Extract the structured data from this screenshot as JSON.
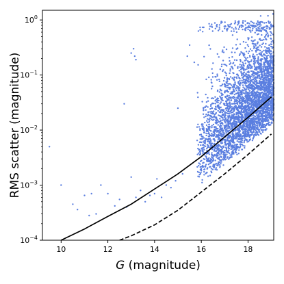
{
  "chart_data": {
    "type": "scatter",
    "title": "",
    "xlabel_italic": "G",
    "xlabel_rest": " (magnitude)",
    "ylabel": "RMS scatter (magnitude)",
    "xlim": [
      9.2,
      19.1
    ],
    "ylim": [
      0.0001,
      1.5
    ],
    "yscale": "log",
    "grid": false,
    "legend": "none",
    "x_ticks": [
      {
        "value": 10,
        "label": "10"
      },
      {
        "value": 12,
        "label": "12"
      },
      {
        "value": 14,
        "label": "14"
      },
      {
        "value": 16,
        "label": "16"
      },
      {
        "value": 18,
        "label": "18"
      }
    ],
    "y_ticks": [
      {
        "value": 0.0001,
        "base": "10",
        "exp": "−4"
      },
      {
        "value": 0.001,
        "base": "10",
        "exp": "−3"
      },
      {
        "value": 0.01,
        "base": "10",
        "exp": "−2"
      },
      {
        "value": 0.1,
        "base": "10",
        "exp": "−1"
      },
      {
        "value": 1,
        "base": "10",
        "exp": "0"
      }
    ],
    "colors": {
      "points": "#5b7fe0",
      "solid_line": "#000000",
      "dashed_line": "#000000"
    },
    "series": [
      {
        "style": "solid",
        "x": [
          10.0,
          11.0,
          12.0,
          13.0,
          14.0,
          15.0,
          16.0,
          17.0,
          18.0,
          19.0
        ],
        "y": [
          0.0001,
          0.00016,
          0.00027,
          0.00045,
          0.00085,
          0.0016,
          0.0033,
          0.0075,
          0.017,
          0.04
        ]
      },
      {
        "style": "dashed",
        "x": [
          12.5,
          13.0,
          14.0,
          15.0,
          16.0,
          17.0,
          18.0,
          19.0
        ],
        "y": [
          0.0001,
          0.00012,
          0.00019,
          0.00035,
          0.00075,
          0.0016,
          0.0036,
          0.0085
        ]
      }
    ],
    "scatter": {
      "sparse_points": [
        [
          9.5,
          0.005
        ],
        [
          10.0,
          0.001
        ],
        [
          10.5,
          0.00045
        ],
        [
          10.7,
          0.00036
        ],
        [
          11.0,
          0.00065
        ],
        [
          11.2,
          0.00028
        ],
        [
          11.5,
          0.0003
        ],
        [
          11.7,
          0.001
        ],
        [
          12.0,
          0.0007
        ],
        [
          12.3,
          0.00042
        ],
        [
          12.5,
          0.00055
        ],
        [
          12.8,
          0.0004
        ],
        [
          13.0,
          0.25
        ],
        [
          13.1,
          0.3
        ],
        [
          13.15,
          0.22
        ],
        [
          13.2,
          0.19
        ],
        [
          13.2,
          0.0006
        ],
        [
          13.4,
          0.0008
        ],
        [
          13.0,
          0.0014
        ],
        [
          13.8,
          0.00065
        ],
        [
          14.0,
          0.0007
        ],
        [
          14.1,
          0.0013
        ],
        [
          14.3,
          0.0006
        ],
        [
          14.5,
          0.001
        ],
        [
          14.7,
          0.0009
        ],
        [
          14.9,
          0.0012
        ],
        [
          15.0,
          0.025
        ],
        [
          15.2,
          0.0016
        ],
        [
          15.4,
          0.22
        ],
        [
          15.5,
          0.35
        ],
        [
          15.7,
          0.17
        ],
        [
          15.9,
          0.0025
        ],
        [
          12.7,
          0.03
        ],
        [
          11.3,
          0.0007
        ],
        [
          13.6,
          0.0005
        ]
      ],
      "dense_region": {
        "x_range": [
          15.8,
          19.1
        ],
        "point_count": 3800
      }
    }
  }
}
